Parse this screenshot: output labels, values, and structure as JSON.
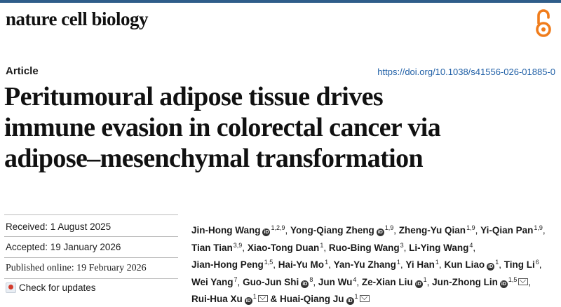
{
  "journal": {
    "name": "nature cell biology"
  },
  "header": {
    "article_type": "Article",
    "doi": "https://doi.org/10.1038/s41556-026-01885-0"
  },
  "title": {
    "line1": "Peritumoural adipose tissue drives",
    "line2": "immune evasion in colorectal cancer via",
    "line3": "adipose–mesenchymal transformation"
  },
  "dates": {
    "received": "Received: 1 August 2025",
    "accepted": "Accepted: 19 January 2026",
    "published": "Published online: 19 February 2026"
  },
  "check_updates": "Check for updates",
  "icons": {
    "open_access": "open-access-lock-icon",
    "orcid": "orcid-icon",
    "email": "envelope-icon",
    "crossmark": "crossmark-icon"
  },
  "colors": {
    "rule": "#2f5d8a",
    "open_access": "#f07c1b",
    "doi_link": "#1f5fa6"
  },
  "authors": [
    {
      "name": "Jin-Hong Wang",
      "orcid": true,
      "aff": "1,2,9"
    },
    {
      "name": "Yong-Qiang Zheng",
      "orcid": true,
      "aff": "1,9"
    },
    {
      "name": "Zheng-Yu Qian",
      "aff": "1,9"
    },
    {
      "name": "Yi-Qian Pan",
      "aff": "1,9"
    },
    {
      "name": "Tian Tian",
      "aff": "3,9"
    },
    {
      "name": "Xiao-Tong Duan",
      "aff": "1"
    },
    {
      "name": "Ruo-Bing Wang",
      "aff": "3"
    },
    {
      "name": "Li-Ying Wang",
      "aff": "4"
    },
    {
      "name": "Jian-Hong Peng",
      "aff": "1,5"
    },
    {
      "name": "Hai-Yu Mo",
      "aff": "1"
    },
    {
      "name": "Yan-Yu Zhang",
      "aff": "1"
    },
    {
      "name": "Yi Han",
      "aff": "1"
    },
    {
      "name": "Kun Liao",
      "orcid": true,
      "aff": "1"
    },
    {
      "name": "Ting Li",
      "aff": "6"
    },
    {
      "name": "Wei Yang",
      "aff": "7"
    },
    {
      "name": "Guo-Jun Shi",
      "orcid": true,
      "aff": "8"
    },
    {
      "name": "Jun Wu",
      "aff": "4"
    },
    {
      "name": "Ze-Xian Liu",
      "orcid": true,
      "aff": "1"
    },
    {
      "name": "Jun-Zhong Lin",
      "orcid": true,
      "aff": "1,5",
      "email": true
    },
    {
      "name": "Rui-Hua Xu",
      "orcid": true,
      "aff": "1",
      "email": true
    },
    {
      "name": "Huai-Qiang Ju",
      "orcid": true,
      "aff": "1",
      "email": true,
      "prefix": "& "
    }
  ]
}
